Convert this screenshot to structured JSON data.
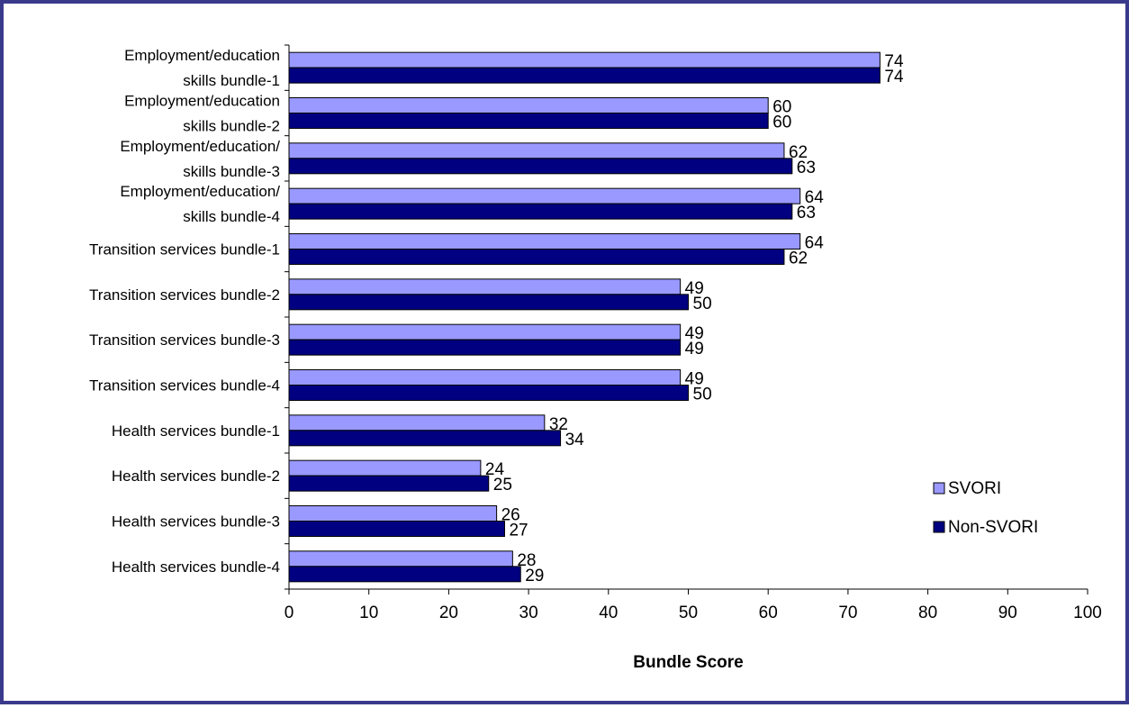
{
  "chart_data": {
    "type": "bar",
    "orientation": "horizontal",
    "categories": [
      [
        "Employment/education",
        "skills bundle-1"
      ],
      [
        "Employment/education",
        "skills bundle-2"
      ],
      [
        "Employment/education/",
        "skills bundle-3"
      ],
      [
        "Employment/education/",
        "skills bundle-4"
      ],
      [
        "Transition services bundle-1"
      ],
      [
        "Transition services bundle-2"
      ],
      [
        "Transition services bundle-3"
      ],
      [
        "Transition services bundle-4"
      ],
      [
        "Health services bundle-1"
      ],
      [
        "Health services bundle-2"
      ],
      [
        "Health services bundle-3"
      ],
      [
        "Health services bundle-4"
      ]
    ],
    "series": [
      {
        "name": "SVORI",
        "color": "#9999ff",
        "values": [
          74,
          60,
          62,
          64,
          64,
          49,
          49,
          49,
          32,
          24,
          26,
          28
        ]
      },
      {
        "name": "Non-SVORI",
        "color": "#000080",
        "values": [
          74,
          60,
          63,
          63,
          62,
          50,
          49,
          50,
          34,
          25,
          27,
          29
        ]
      }
    ],
    "xlabel": "Bundle Score",
    "xlim": [
      0,
      100
    ],
    "xticks": [
      0,
      10,
      20,
      30,
      40,
      50,
      60,
      70,
      80,
      90,
      100
    ],
    "grid": false,
    "legend_position": "right"
  }
}
